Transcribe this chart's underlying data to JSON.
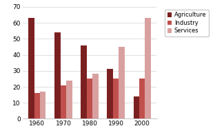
{
  "years": [
    "1960",
    "1970",
    "1980",
    "1990",
    "2000"
  ],
  "agriculture": [
    63,
    54,
    46,
    31,
    14
  ],
  "industry": [
    16,
    21,
    25,
    25,
    25
  ],
  "services": [
    17,
    24,
    28,
    45,
    63
  ],
  "agriculture_color": "#7b2020",
  "industry_color": "#c0504d",
  "services_color": "#d9a0a0",
  "ylim": [
    0,
    70
  ],
  "yticks": [
    0,
    10,
    20,
    30,
    40,
    50,
    60,
    70
  ],
  "legend_labels": [
    "Agriculture",
    "Industry",
    "Services"
  ],
  "bar_width": 0.22,
  "background_color": "#ffffff"
}
